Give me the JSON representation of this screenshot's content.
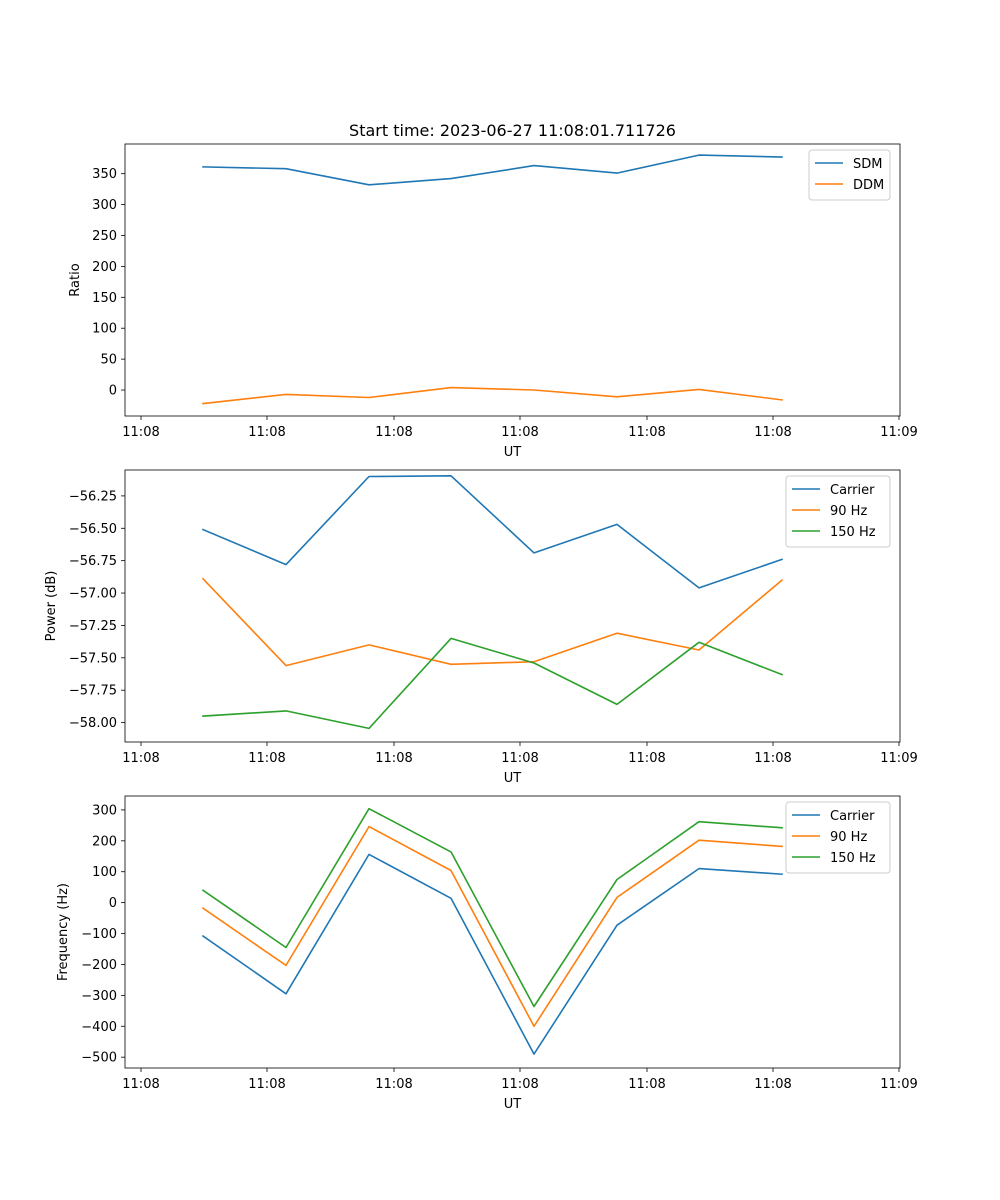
{
  "figure": {
    "title": "Start time: 2023-06-27 11:08:01.711726"
  },
  "chart_data": [
    {
      "type": "line",
      "title": "Start time: 2023-06-27 11:08:01.711726",
      "xlabel": "UT",
      "ylabel": "Ratio",
      "x_ticks": [
        "11:08",
        "11:08",
        "11:08",
        "11:08",
        "11:08",
        "11:08",
        "11:09"
      ],
      "y_ticks": [
        "0",
        "50",
        "100",
        "150",
        "200",
        "250",
        "300",
        "350"
      ],
      "ylim": [
        -42,
        398
      ],
      "grid": false,
      "legend": "top-right",
      "series": [
        {
          "name": "SDM",
          "color": "#1f77b4",
          "values": [
            361,
            358,
            332,
            342,
            363,
            351,
            380,
            377
          ]
        },
        {
          "name": "DDM",
          "color": "#ff7f0e",
          "values": [
            -22,
            -7,
            -12,
            4,
            0,
            -11,
            1,
            -16
          ]
        }
      ]
    },
    {
      "type": "line",
      "title": "",
      "xlabel": "UT",
      "ylabel": "Power (dB)",
      "x_ticks": [
        "11:08",
        "11:08",
        "11:08",
        "11:08",
        "11:08",
        "11:08",
        "11:09"
      ],
      "y_ticks": [
        "−58.00",
        "−57.75",
        "−57.50",
        "−57.25",
        "−57.00",
        "−56.75",
        "−56.50",
        "−56.25"
      ],
      "ylim": [
        -58.15,
        -56.05
      ],
      "grid": false,
      "legend": "top-right",
      "series": [
        {
          "name": "Carrier",
          "color": "#1f77b4",
          "values": [
            -56.51,
            -56.78,
            -56.1,
            -56.095,
            -56.69,
            -56.47,
            -56.96,
            -56.74
          ]
        },
        {
          "name": "90 Hz",
          "color": "#ff7f0e",
          "values": [
            -56.89,
            -57.56,
            -57.4,
            -57.55,
            -57.53,
            -57.31,
            -57.44,
            -56.9
          ]
        },
        {
          "name": "150 Hz",
          "color": "#2ca02c",
          "values": [
            -57.95,
            -57.91,
            -58.045,
            -57.35,
            -57.54,
            -57.86,
            -57.38,
            -57.63
          ]
        }
      ]
    },
    {
      "type": "line",
      "title": "",
      "xlabel": "UT",
      "ylabel": "Frequency (Hz)",
      "x_ticks": [
        "11:08",
        "11:08",
        "11:08",
        "11:08",
        "11:08",
        "11:08",
        "11:09"
      ],
      "y_ticks": [
        "−500",
        "−400",
        "−300",
        "−200",
        "−100",
        "0",
        "100",
        "200",
        "300"
      ],
      "ylim": [
        -535,
        345
      ],
      "grid": false,
      "legend": "top-right",
      "series": [
        {
          "name": "Carrier",
          "color": "#1f77b4",
          "values": [
            -108,
            -295,
            156,
            14,
            -490,
            -73,
            110,
            92
          ]
        },
        {
          "name": "90 Hz",
          "color": "#ff7f0e",
          "values": [
            -18,
            -203,
            246,
            104,
            -400,
            17,
            202,
            182
          ]
        },
        {
          "name": "150 Hz",
          "color": "#2ca02c",
          "values": [
            40,
            -145,
            304,
            164,
            -336,
            75,
            262,
            242
          ]
        }
      ]
    }
  ]
}
